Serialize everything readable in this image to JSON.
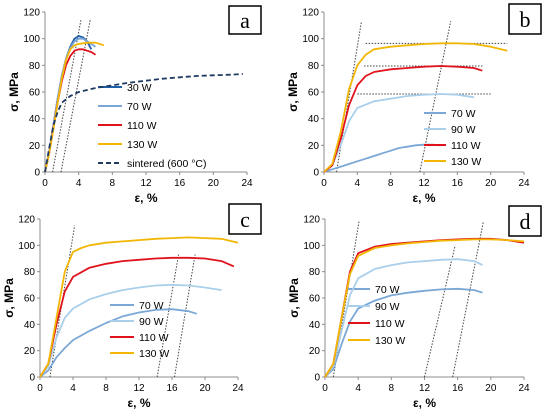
{
  "colors": {
    "30W": "#1f5fa8",
    "70W": "#7aa7d6",
    "90W": "#a9cfea",
    "110W": "#e0121b",
    "130W": "#f2b705",
    "sintered": "#1f3b63",
    "guide": "#444444"
  },
  "chart_data": [
    {
      "id": "a",
      "type": "line",
      "panel_label": "a",
      "xlabel": "ε, %",
      "ylabel": "σ, MPa",
      "xlim": [
        0,
        24
      ],
      "ylim": [
        0,
        120
      ],
      "xticks": [
        0,
        4,
        8,
        12,
        16,
        20,
        24
      ],
      "yticks": [
        0,
        20,
        40,
        60,
        80,
        100,
        120
      ],
      "legend_position": "right",
      "series": [
        {
          "name": "30 W",
          "color_key": "30W",
          "x": [
            0,
            0.5,
            1,
            1.5,
            2,
            2.5,
            3,
            3.5,
            4,
            4.5,
            5,
            5.5
          ],
          "y": [
            0,
            15,
            35,
            55,
            72,
            85,
            94,
            100,
            102,
            101,
            98,
            92
          ]
        },
        {
          "name": "70 W",
          "color_key": "70W",
          "x": [
            0,
            0.5,
            1,
            1.5,
            2,
            2.5,
            3,
            3.5,
            4,
            4.5,
            5,
            5.5,
            6
          ],
          "y": [
            0,
            15,
            35,
            55,
            72,
            85,
            93,
            98,
            100,
            100,
            98,
            96,
            94
          ]
        },
        {
          "name": "110 W",
          "color_key": "110W",
          "x": [
            0,
            0.5,
            1,
            1.5,
            2,
            2.5,
            3,
            3.5,
            4,
            4.5,
            5,
            5.5,
            6
          ],
          "y": [
            0,
            14,
            33,
            52,
            68,
            80,
            87,
            91,
            92,
            92,
            91,
            90,
            88
          ]
        },
        {
          "name": "130 W",
          "color_key": "130W",
          "x": [
            0,
            0.5,
            1,
            1.5,
            2,
            2.5,
            3,
            3.5,
            4,
            5,
            6,
            7
          ],
          "y": [
            0,
            14,
            32,
            52,
            70,
            84,
            92,
            95,
            96,
            97,
            97,
            95
          ]
        },
        {
          "name": "sintered (600 °C)",
          "color_key": "sintered",
          "dashed": true,
          "x": [
            0,
            0.5,
            1,
            1.5,
            2,
            3,
            4,
            6,
            8,
            10,
            12,
            14,
            16,
            18,
            20,
            22,
            23.5
          ],
          "y": [
            0,
            18,
            35,
            45,
            52,
            57,
            60,
            63,
            65,
            67,
            68.5,
            70,
            71,
            72,
            72.5,
            73,
            73.5
          ]
        }
      ],
      "guides": [
        [
          [
            0.9,
            0
          ],
          [
            4.3,
            115
          ]
        ],
        [
          [
            1.9,
            0
          ],
          [
            5.4,
            115
          ]
        ]
      ]
    },
    {
      "id": "b",
      "type": "line",
      "panel_label": "b",
      "xlabel": "ε, %",
      "ylabel": "σ, MPa",
      "xlim": [
        0,
        24
      ],
      "ylim": [
        0,
        120
      ],
      "xticks": [
        0,
        4,
        8,
        12,
        16,
        20,
        24
      ],
      "yticks": [
        0,
        20,
        40,
        60,
        80,
        100,
        120
      ],
      "legend_position": "bottom-right",
      "series": [
        {
          "name": "70 W",
          "color_key": "70W",
          "x": [
            0,
            1,
            2,
            3,
            4,
            5,
            6,
            7,
            8,
            9,
            10,
            11,
            12,
            13,
            14
          ],
          "y": [
            0,
            2,
            4,
            6,
            8,
            10,
            12,
            14,
            16,
            18,
            19,
            20,
            20.5,
            20.5,
            20
          ]
        },
        {
          "name": "90 W",
          "color_key": "90W",
          "x": [
            0,
            1,
            2,
            3,
            4,
            6,
            8,
            10,
            12,
            14,
            16,
            18
          ],
          "y": [
            0,
            5,
            20,
            38,
            48,
            53,
            55,
            57,
            58,
            58.5,
            58,
            56
          ]
        },
        {
          "name": "110 W",
          "color_key": "110W",
          "x": [
            0,
            1,
            2,
            3,
            4,
            5,
            6,
            8,
            10,
            12,
            14,
            16,
            18,
            19
          ],
          "y": [
            0,
            5,
            25,
            50,
            65,
            72,
            75,
            77,
            78,
            79,
            79.5,
            79,
            78,
            76
          ]
        },
        {
          "name": "130 W",
          "color_key": "130W",
          "x": [
            0,
            1,
            2,
            3,
            4,
            5,
            6,
            8,
            10,
            12,
            14,
            16,
            18,
            20,
            22
          ],
          "y": [
            0,
            6,
            30,
            62,
            80,
            88,
            92,
            94,
            95,
            96,
            96.5,
            96.5,
            96,
            94,
            91
          ]
        }
      ],
      "guides": [
        [
          [
            1.5,
            0
          ],
          [
            4.5,
            113
          ]
        ],
        [
          [
            11.5,
            0
          ],
          [
            15.2,
            113
          ]
        ]
      ],
      "hlines": [
        {
          "y": 96.5,
          "x0": 5,
          "x1": 22
        },
        {
          "y": 79.5,
          "x0": 4.8,
          "x1": 19
        },
        {
          "y": 58.5,
          "x0": 4,
          "x1": 20
        }
      ]
    },
    {
      "id": "c",
      "type": "line",
      "panel_label": "c",
      "xlabel": "ε, %",
      "ylabel": "σ, MPa",
      "xlim": [
        0,
        24
      ],
      "ylim": [
        0,
        120
      ],
      "xticks": [
        0,
        4,
        8,
        12,
        16,
        20,
        24
      ],
      "yticks": [
        0,
        20,
        40,
        60,
        80,
        100,
        120
      ],
      "legend_position": "bottom-left",
      "series": [
        {
          "name": "70 W",
          "color_key": "70W",
          "x": [
            0,
            1,
            2,
            3,
            4,
            6,
            8,
            10,
            12,
            14,
            16,
            18,
            19
          ],
          "y": [
            0,
            5,
            15,
            22,
            28,
            35,
            41,
            46,
            49,
            51,
            51.5,
            50,
            48
          ]
        },
        {
          "name": "90 W",
          "color_key": "90W",
          "x": [
            0,
            1,
            2,
            3,
            4,
            6,
            8,
            10,
            12,
            14,
            16,
            18,
            20,
            22
          ],
          "y": [
            0,
            8,
            30,
            45,
            52,
            59,
            63,
            66,
            68,
            69.5,
            70,
            69.5,
            68,
            66
          ]
        },
        {
          "name": "110 W",
          "color_key": "110W",
          "x": [
            0,
            1,
            2,
            3,
            4,
            6,
            8,
            10,
            12,
            14,
            16,
            18,
            20,
            22,
            23.5
          ],
          "y": [
            0,
            10,
            40,
            65,
            76,
            83,
            86,
            88,
            89,
            90,
            90.5,
            90.5,
            90,
            88,
            84
          ]
        },
        {
          "name": "130 W",
          "color_key": "130W",
          "x": [
            0,
            1,
            2,
            3,
            4,
            5,
            6,
            8,
            10,
            12,
            14,
            16,
            18,
            20,
            22,
            24
          ],
          "y": [
            0,
            10,
            45,
            80,
            95,
            98,
            100,
            102,
            103,
            104,
            105,
            105.5,
            106,
            105.5,
            105,
            102
          ]
        }
      ],
      "guides": [
        [
          [
            1.2,
            0
          ],
          [
            4.2,
            115
          ]
        ],
        [
          [
            14.2,
            0
          ],
          [
            16.8,
            93
          ]
        ],
        [
          [
            16.3,
            0
          ],
          [
            18.8,
            93
          ]
        ]
      ]
    },
    {
      "id": "d",
      "type": "line",
      "panel_label": "d",
      "xlabel": "ε, %",
      "ylabel": "σ, MPa",
      "xlim": [
        0,
        24
      ],
      "ylim": [
        0,
        120
      ],
      "xticks": [
        0,
        4,
        8,
        12,
        16,
        20,
        24
      ],
      "yticks": [
        0,
        20,
        40,
        60,
        80,
        100,
        120
      ],
      "legend_position": "bottom-left",
      "series": [
        {
          "name": "70 W",
          "color_key": "70W",
          "x": [
            0,
            1,
            2,
            3,
            4,
            6,
            8,
            10,
            12,
            14,
            16,
            18,
            19
          ],
          "y": [
            0,
            6,
            25,
            42,
            52,
            58,
            62,
            64,
            65.5,
            66.5,
            67,
            66,
            64
          ]
        },
        {
          "name": "90 W",
          "color_key": "90W",
          "x": [
            0,
            1,
            2,
            3,
            4,
            6,
            8,
            10,
            12,
            14,
            16,
            18,
            19
          ],
          "y": [
            0,
            8,
            35,
            62,
            75,
            82,
            85,
            87,
            88,
            89,
            89.5,
            88,
            85
          ]
        },
        {
          "name": "110 W",
          "color_key": "110W",
          "x": [
            0,
            1,
            2,
            3,
            4,
            6,
            8,
            10,
            12,
            14,
            16,
            18,
            20,
            22,
            24
          ],
          "y": [
            0,
            10,
            45,
            80,
            94,
            99,
            101,
            102,
            103,
            104,
            104.5,
            105,
            105,
            104,
            102
          ]
        },
        {
          "name": "130 W",
          "color_key": "130W",
          "x": [
            0,
            1,
            2,
            3,
            4,
            6,
            8,
            10,
            12,
            14,
            16,
            18,
            20,
            22,
            24
          ],
          "y": [
            0,
            10,
            45,
            78,
            92,
            98,
            100,
            101.5,
            102.5,
            103.5,
            104,
            104.5,
            104.5,
            104,
            103
          ]
        }
      ],
      "guides": [
        [
          [
            1.0,
            0
          ],
          [
            4.1,
            118
          ]
        ],
        [
          [
            12.0,
            0
          ],
          [
            15.7,
            100
          ]
        ],
        [
          [
            15.4,
            0
          ],
          [
            19.1,
            118
          ]
        ]
      ]
    }
  ]
}
